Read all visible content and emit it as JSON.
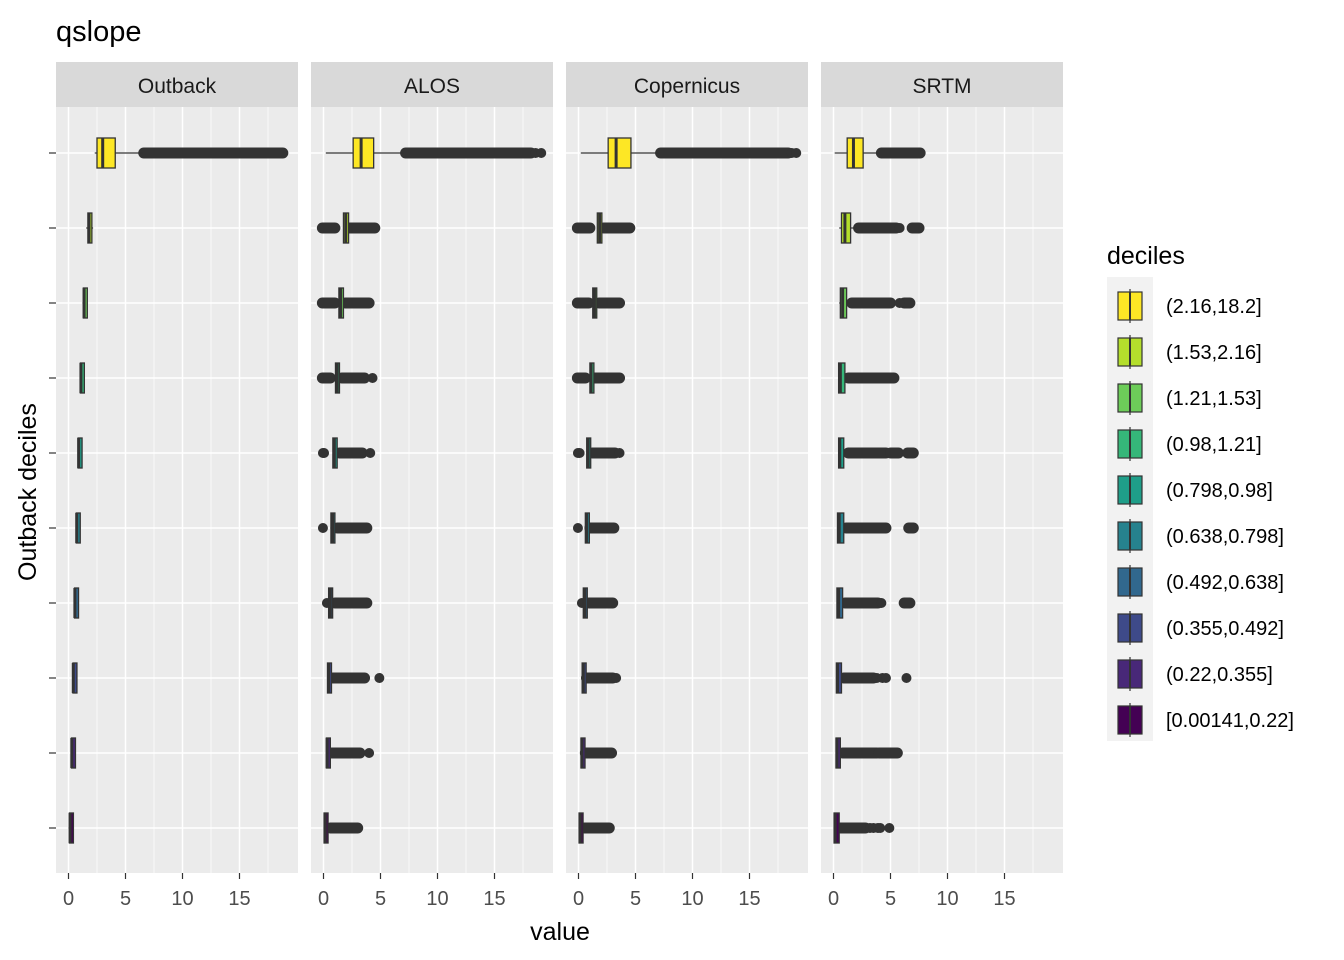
{
  "chart_data": {
    "type": "boxplot",
    "title": "qslope",
    "xlabel": "value",
    "ylabel": "Outback deciles",
    "xlim": [
      -1,
      19.5
    ],
    "x_ticks": [
      0,
      5,
      10,
      15
    ],
    "y_tick_labels_shown": false,
    "grid": true,
    "legend": {
      "title": "deciles",
      "position": "right"
    },
    "panels": [
      "Outback",
      "ALOS",
      "Copernicus",
      "SRTM"
    ],
    "deciles": [
      {
        "label": "(2.16,18.2]",
        "color": "#FDE725"
      },
      {
        "label": "(1.53,2.16]",
        "color": "#B4DE2C"
      },
      {
        "label": "(1.21,1.53]",
        "color": "#6DCD59"
      },
      {
        "label": "(0.98,1.21]",
        "color": "#35B779"
      },
      {
        "label": "(0.798,0.98]",
        "color": "#1F9E89"
      },
      {
        "label": "(0.638,0.798]",
        "color": "#26828E"
      },
      {
        "label": "(0.492,0.638]",
        "color": "#31688E"
      },
      {
        "label": "(0.355,0.492]",
        "color": "#3E4A89"
      },
      {
        "label": "(0.22,0.355]",
        "color": "#482878"
      },
      {
        "label": "[0.00141,0.22]",
        "color": "#440154"
      }
    ],
    "series": [
      {
        "name": "Outback",
        "boxes": [
          {
            "min": 2.3,
            "q1": 2.5,
            "median": 3.0,
            "q3": 4.1,
            "max": 6.5,
            "outliers": [
              [
                6.6,
                18.8
              ]
            ]
          },
          {
            "min": 1.55,
            "q1": 1.7,
            "median": 1.8,
            "q3": 1.95,
            "max": 2.16,
            "outliers": []
          },
          {
            "min": 1.22,
            "q1": 1.3,
            "median": 1.37,
            "q3": 1.45,
            "max": 1.53,
            "outliers": []
          },
          {
            "min": 0.99,
            "q1": 1.04,
            "median": 1.09,
            "q3": 1.15,
            "max": 1.21,
            "outliers": []
          },
          {
            "min": 0.8,
            "q1": 0.84,
            "median": 0.89,
            "q3": 0.94,
            "max": 0.98,
            "outliers": []
          },
          {
            "min": 0.64,
            "q1": 0.68,
            "median": 0.72,
            "q3": 0.76,
            "max": 0.8,
            "outliers": []
          },
          {
            "min": 0.49,
            "q1": 0.53,
            "median": 0.56,
            "q3": 0.6,
            "max": 0.64,
            "outliers": []
          },
          {
            "min": 0.36,
            "q1": 0.39,
            "median": 0.42,
            "q3": 0.46,
            "max": 0.49,
            "outliers": []
          },
          {
            "min": 0.22,
            "q1": 0.26,
            "median": 0.29,
            "q3": 0.32,
            "max": 0.36,
            "outliers": []
          },
          {
            "min": 0.0,
            "q1": 0.08,
            "median": 0.14,
            "q3": 0.18,
            "max": 0.22,
            "outliers": []
          }
        ]
      },
      {
        "name": "ALOS",
        "boxes": [
          {
            "min": 0.2,
            "q1": 2.6,
            "median": 3.3,
            "q3": 4.4,
            "max": 7.0,
            "outliers": [
              [
                7.2,
                18.2
              ]
            ],
            "points": [
              18.6,
              19.1
            ]
          },
          {
            "min": 1.7,
            "q1": 1.75,
            "median": 1.95,
            "q3": 2.2,
            "max": 2.3,
            "outliers": [
              [
                -0.1,
                1.0
              ],
              [
                2.3,
                4.5
              ]
            ]
          },
          {
            "min": 1.3,
            "q1": 1.35,
            "median": 1.5,
            "q3": 1.75,
            "max": 1.85,
            "outliers": [
              [
                -0.1,
                1.0
              ],
              [
                1.9,
                4.0
              ]
            ]
          },
          {
            "min": 1.0,
            "q1": 1.05,
            "median": 1.2,
            "q3": 1.4,
            "max": 1.5,
            "outliers": [
              [
                -0.1,
                0.6
              ],
              [
                1.6,
                3.6
              ]
            ],
            "points": [
              4.3
            ]
          },
          {
            "min": 0.8,
            "q1": 0.82,
            "median": 0.95,
            "q3": 1.2,
            "max": 1.3,
            "outliers": [
              [
                1.4,
                3.4
              ]
            ],
            "points": [
              -0.05,
              0.05,
              4.1
            ]
          },
          {
            "min": 0.6,
            "q1": 0.65,
            "median": 0.8,
            "q3": 1.0,
            "max": 1.1,
            "outliers": [
              [
                1.2,
                3.8
              ]
            ],
            "points": [
              -0.05
            ]
          },
          {
            "min": 0.4,
            "q1": 0.45,
            "median": 0.6,
            "q3": 0.8,
            "max": 0.9,
            "outliers": [
              [
                1.0,
                3.8
              ]
            ],
            "points": [
              0.3
            ]
          },
          {
            "min": 0.3,
            "q1": 0.35,
            "median": 0.45,
            "q3": 0.65,
            "max": 0.75,
            "outliers": [
              [
                0.8,
                3.6
              ]
            ],
            "points": [
              4.9
            ]
          },
          {
            "min": 0.2,
            "q1": 0.25,
            "median": 0.32,
            "q3": 0.5,
            "max": 0.6,
            "outliers": [
              [
                0.7,
                3.2
              ]
            ],
            "points": [
              4.0
            ]
          },
          {
            "min": 0.0,
            "q1": 0.05,
            "median": 0.15,
            "q3": 0.4,
            "max": 0.5,
            "outliers": [
              [
                0.6,
                3.0
              ]
            ]
          }
        ]
      },
      {
        "name": "Copernicus",
        "boxes": [
          {
            "min": 0.2,
            "q1": 2.6,
            "median": 3.3,
            "q3": 4.6,
            "max": 7.0,
            "outliers": [
              [
                7.2,
                18.4
              ]
            ],
            "points": [
              18.7,
              19.1
            ]
          },
          {
            "min": 1.6,
            "q1": 1.65,
            "median": 1.85,
            "q3": 2.05,
            "max": 2.15,
            "outliers": [
              [
                -0.1,
                1.0
              ],
              [
                2.2,
                4.5
              ]
            ]
          },
          {
            "min": 1.2,
            "q1": 1.25,
            "median": 1.4,
            "q3": 1.6,
            "max": 1.7,
            "outliers": [
              [
                -0.1,
                0.9
              ],
              [
                1.8,
                3.6
              ]
            ]
          },
          {
            "min": 0.95,
            "q1": 1.0,
            "median": 1.1,
            "q3": 1.3,
            "max": 1.35,
            "outliers": [
              [
                -0.1,
                0.6
              ],
              [
                1.4,
                3.6
              ]
            ]
          },
          {
            "min": 0.7,
            "q1": 0.72,
            "median": 0.85,
            "q3": 1.05,
            "max": 1.1,
            "outliers": [
              [
                1.2,
                3.2
              ]
            ],
            "points": [
              -0.05,
              0.1,
              3.6
            ]
          },
          {
            "min": 0.55,
            "q1": 0.6,
            "median": 0.7,
            "q3": 0.9,
            "max": 0.95,
            "outliers": [
              [
                1.0,
                3.1
              ]
            ],
            "points": [
              -0.05
            ]
          },
          {
            "min": 0.4,
            "q1": 0.42,
            "median": 0.55,
            "q3": 0.75,
            "max": 0.8,
            "outliers": [
              [
                0.9,
                3.0
              ]
            ],
            "points": [
              0.3
            ]
          },
          {
            "min": 0.3,
            "q1": 0.32,
            "median": 0.42,
            "q3": 0.6,
            "max": 0.65,
            "outliers": [
              [
                0.7,
                3.0
              ]
            ],
            "points": [
              3.3
            ]
          },
          {
            "min": 0.2,
            "q1": 0.22,
            "median": 0.3,
            "q3": 0.5,
            "max": 0.55,
            "outliers": [
              [
                0.6,
                2.9
              ]
            ]
          },
          {
            "min": 0.0,
            "q1": 0.05,
            "median": 0.15,
            "q3": 0.4,
            "max": 0.45,
            "outliers": [
              [
                0.5,
                2.7
              ]
            ]
          }
        ]
      },
      {
        "name": "SRTM",
        "boxes": [
          {
            "min": 0.1,
            "q1": 1.2,
            "median": 1.75,
            "q3": 2.6,
            "max": 4.0,
            "outliers": [
              [
                4.2,
                7.6
              ]
            ]
          },
          {
            "min": 0.5,
            "q1": 0.7,
            "median": 1.0,
            "q3": 1.5,
            "max": 2.0,
            "outliers": [
              [
                2.2,
                5.5
              ],
              [
                6.9,
                7.5
              ]
            ],
            "points": [
              5.8
            ]
          },
          {
            "min": 0.5,
            "q1": 0.6,
            "median": 0.8,
            "q3": 1.15,
            "max": 1.5,
            "outliers": [
              [
                1.6,
                5.0
              ],
              [
                6.2,
                6.7
              ]
            ],
            "points": [
              5.8
            ]
          },
          {
            "min": 0.4,
            "q1": 0.45,
            "median": 0.6,
            "q3": 1.0,
            "max": 1.2,
            "outliers": [
              [
                1.3,
                5.3
              ]
            ]
          },
          {
            "min": 0.4,
            "q1": 0.45,
            "median": 0.55,
            "q3": 0.9,
            "max": 1.1,
            "outliers": [
              [
                1.3,
                4.6
              ],
              [
                5.0,
                5.7
              ],
              [
                6.5,
                7.0
              ]
            ]
          },
          {
            "min": 0.3,
            "q1": 0.35,
            "median": 0.5,
            "q3": 0.9,
            "max": 1.0,
            "outliers": [
              [
                1.1,
                4.6
              ],
              [
                6.6,
                7.0
              ]
            ]
          },
          {
            "min": 0.3,
            "q1": 0.3,
            "median": 0.45,
            "q3": 0.8,
            "max": 0.9,
            "outliers": [
              [
                1.0,
                3.9
              ],
              [
                6.2,
                6.7
              ]
            ],
            "points": [
              4.2
            ]
          },
          {
            "min": 0.2,
            "q1": 0.25,
            "median": 0.35,
            "q3": 0.7,
            "max": 0.8,
            "outliers": [
              [
                0.9,
                3.5
              ]
            ],
            "points": [
              3.8,
              4.3,
              4.6,
              6.4
            ]
          },
          {
            "min": 0.2,
            "q1": 0.22,
            "median": 0.3,
            "q3": 0.6,
            "max": 0.7,
            "outliers": [
              [
                0.8,
                3.8
              ],
              [
                4.0,
                5.6
              ]
            ]
          },
          {
            "min": 0.0,
            "q1": 0.05,
            "median": 0.15,
            "q3": 0.5,
            "max": 0.55,
            "outliers": [
              [
                0.6,
                2.8
              ]
            ],
            "points": [
              3.2,
              3.5,
              3.9,
              4.1,
              4.9
            ]
          }
        ]
      }
    ]
  }
}
